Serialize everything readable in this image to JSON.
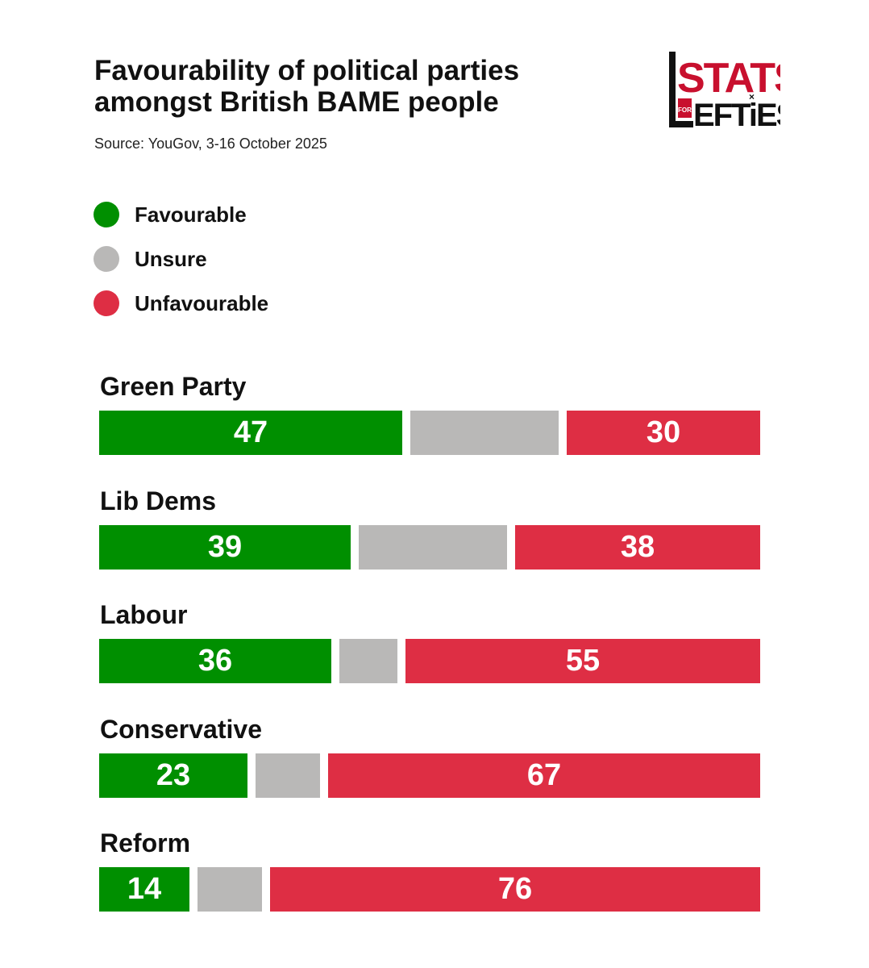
{
  "title_lines": [
    "Favourability of political parties",
    "amongst British BAME people"
  ],
  "source": "Source: YouGov, 3-16 October 2025",
  "logo": {
    "top_text": "STATS",
    "middle_text": "FOR",
    "bottom_text": "EFTiES",
    "accent_color": "#c8102e",
    "dark_color": "#111111"
  },
  "legend": [
    {
      "label": "Favourable",
      "color": "#008f00"
    },
    {
      "label": "Unsure",
      "color": "#b9b8b7"
    },
    {
      "label": "Unfavourable",
      "color": "#de2e44"
    }
  ],
  "chart_data": {
    "type": "bar",
    "orientation": "horizontal-stacked",
    "title": "Favourability of political parties amongst British BAME people",
    "subtitle": "Source: YouGov, 3-16 October 2025",
    "categories": [
      "Green Party",
      "Lib Dems",
      "Labour",
      "Conservative",
      "Reform"
    ],
    "series": [
      {
        "name": "Favourable",
        "color": "#008f00",
        "values": [
          47,
          39,
          36,
          23,
          14
        ],
        "show_labels": true
      },
      {
        "name": "Unsure",
        "color": "#b9b8b7",
        "values": [
          23,
          23,
          9,
          10,
          10
        ],
        "show_labels": false
      },
      {
        "name": "Unfavourable",
        "color": "#de2e44",
        "values": [
          30,
          38,
          55,
          67,
          76
        ],
        "show_labels": true
      }
    ],
    "xlim": [
      0,
      100
    ],
    "legend_position": "top-left",
    "grid": false,
    "xlabel": "",
    "ylabel": ""
  }
}
